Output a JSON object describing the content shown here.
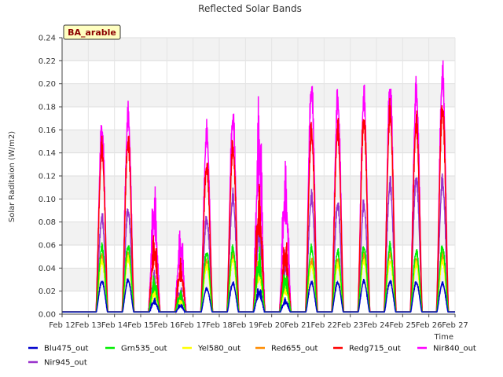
{
  "chart_data": {
    "type": "line",
    "title": "Reflected Solar Bands",
    "badge": "BA_arable",
    "xlabel": "Time",
    "ylabel": "Solar Raditaion (W/m2)",
    "ylim": [
      0,
      0.24
    ],
    "y_ticks": [
      0.0,
      0.02,
      0.04,
      0.06,
      0.08,
      0.1,
      0.12,
      0.14,
      0.16,
      0.18,
      0.2,
      0.22,
      0.24
    ],
    "y_tick_labels": [
      "0.00",
      "0.02",
      "0.04",
      "0.06",
      "0.08",
      "0.10",
      "0.12",
      "0.14",
      "0.16",
      "0.18",
      "0.20",
      "0.22",
      "0.24"
    ],
    "x_tick_labels": [
      "Feb 12",
      "Feb 13",
      "Feb 14",
      "Feb 15",
      "Feb 16",
      "Feb 17",
      "Feb 18",
      "Feb 19",
      "Feb 20",
      "Feb 21",
      "Feb 22",
      "Feb 23",
      "Feb 24",
      "Feb 25",
      "Feb 26",
      "Feb 27"
    ],
    "grid": true,
    "legend_position": "bottom",
    "night_value": 0.002,
    "days": [
      "Feb 12",
      "Feb 13",
      "Feb 14",
      "Feb 15",
      "Feb 16",
      "Feb 17",
      "Feb 18",
      "Feb 19",
      "Feb 20",
      "Feb 21",
      "Feb 22",
      "Feb 23",
      "Feb 24",
      "Feb 25",
      "Feb 26"
    ],
    "series": [
      {
        "name": "Nir945_out",
        "color": "#9932cc",
        "daily_peak": [
          0,
          0.091,
          0.098,
          0.04,
          0.025,
          0.09,
          0.11,
          0.1,
          0.06,
          0.11,
          0.104,
          0.103,
          0.123,
          0.129,
          0.125
        ]
      },
      {
        "name": "Nir840_out",
        "color": "#ff00ff",
        "daily_peak": [
          0,
          0.175,
          0.187,
          0.12,
          0.08,
          0.17,
          0.185,
          0.2,
          0.14,
          0.213,
          0.202,
          0.204,
          0.213,
          0.211,
          0.225
        ]
      },
      {
        "name": "Redg715_out",
        "color": "#ff0000",
        "daily_peak": [
          0,
          0.156,
          0.163,
          0.075,
          0.05,
          0.14,
          0.157,
          0.12,
          0.07,
          0.172,
          0.174,
          0.184,
          0.191,
          0.181,
          0.195
        ]
      },
      {
        "name": "Red655_out",
        "color": "#ff8c00",
        "daily_peak": [
          0,
          0.056,
          0.057,
          0.03,
          0.02,
          0.05,
          0.056,
          0.055,
          0.035,
          0.05,
          0.052,
          0.055,
          0.057,
          0.052,
          0.055
        ]
      },
      {
        "name": "Yel580_out",
        "color": "#ffff00",
        "daily_peak": [
          0,
          0.05,
          0.052,
          0.025,
          0.015,
          0.045,
          0.052,
          0.05,
          0.03,
          0.046,
          0.046,
          0.05,
          0.05,
          0.047,
          0.05
        ]
      },
      {
        "name": "Grn535_out",
        "color": "#00ee00",
        "daily_peak": [
          0,
          0.063,
          0.064,
          0.035,
          0.022,
          0.058,
          0.062,
          0.06,
          0.04,
          0.062,
          0.059,
          0.063,
          0.064,
          0.059,
          0.063
        ]
      },
      {
        "name": "Blu475_out",
        "color": "#0000cd",
        "daily_peak": [
          0,
          0.031,
          0.032,
          0.015,
          0.01,
          0.024,
          0.029,
          0.026,
          0.015,
          0.03,
          0.03,
          0.031,
          0.031,
          0.03,
          0.029
        ]
      }
    ],
    "legend_order": [
      "Blu475_out",
      "Grn535_out",
      "Yel580_out",
      "Red655_out",
      "Redg715_out",
      "Nir840_out",
      "Nir945_out"
    ]
  }
}
